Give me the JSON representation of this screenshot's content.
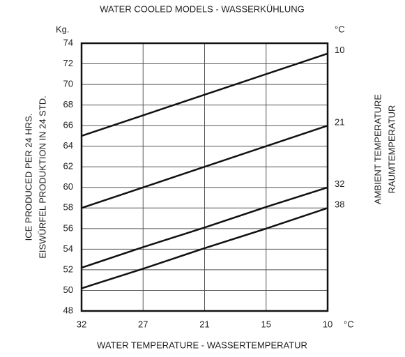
{
  "chart_data": {
    "type": "line",
    "title": "WATER COOLED MODELS - WASSERKÜHLUNG",
    "y_unit": "Kg.",
    "legend_unit": "°C",
    "x_unit": "°C",
    "xlabel": "WATER TEMPERATURE - WASSERTEMPERATUR",
    "ylabel": [
      "ICE PRODUCED PER 24 HRS.",
      "EISWÜRFEL PRODUKTION IN 24 STD."
    ],
    "legend_title": [
      "AMBIENT TEMPERATURE",
      "RAUMTEMPERATUR"
    ],
    "categories": [
      "32",
      "27",
      "21",
      "15",
      "10"
    ],
    "series": [
      {
        "name": "10",
        "color": "#111111",
        "values": [
          65,
          67,
          69,
          71,
          73
        ]
      },
      {
        "name": "21",
        "color": "#111111",
        "values": [
          58,
          60,
          62,
          64,
          66
        ]
      },
      {
        "name": "32",
        "color": "#111111",
        "values": [
          52.2,
          54.2,
          56.1,
          58.1,
          60
        ]
      },
      {
        "name": "38",
        "color": "#111111",
        "values": [
          50.2,
          52.1,
          54.1,
          56,
          58
        ]
      }
    ],
    "ylim": [
      48,
      74
    ],
    "yticks": [
      48,
      50,
      52,
      54,
      56,
      58,
      60,
      62,
      64,
      66,
      68,
      70,
      72,
      74
    ],
    "grid": true
  }
}
